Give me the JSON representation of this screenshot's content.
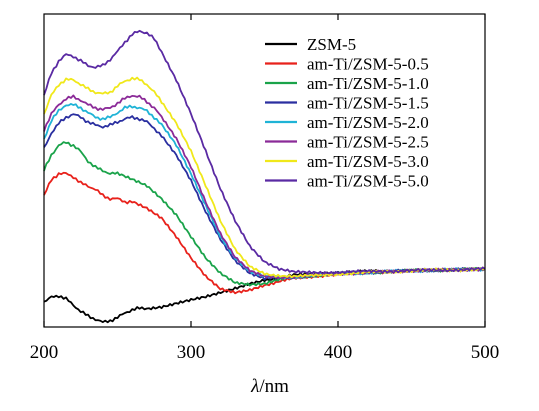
{
  "chart_data": {
    "type": "line",
    "title": "",
    "xlabel_symbol": "λ",
    "xlabel_unit": "/nm",
    "ylabel": "",
    "xlim": [
      200,
      500
    ],
    "ylim": [
      0,
      1
    ],
    "xticks": [
      200,
      300,
      400,
      500
    ],
    "xtick_labels": [
      "200",
      "300",
      "400",
      "500"
    ],
    "yticks_shown": false,
    "grid": false,
    "legend_position": "top-right",
    "series": [
      {
        "name": "ZSM-5",
        "color": "#000000",
        "x": [
          200,
          205,
          210,
          215,
          220,
          225,
          230,
          235,
          240,
          245,
          250,
          255,
          260,
          265,
          270,
          280,
          290,
          300,
          310,
          320,
          330,
          340,
          350,
          370,
          400,
          450,
          500
        ],
        "y": [
          0.08,
          0.095,
          0.1,
          0.09,
          0.07,
          0.05,
          0.035,
          0.025,
          0.015,
          0.02,
          0.03,
          0.045,
          0.055,
          0.06,
          0.06,
          0.065,
          0.075,
          0.085,
          0.095,
          0.11,
          0.125,
          0.14,
          0.15,
          0.165,
          0.175,
          0.18,
          0.185
        ]
      },
      {
        "name": "am-Ti/ZSM-5-0.5",
        "color": "#e8211b",
        "x": [
          200,
          205,
          210,
          215,
          220,
          225,
          230,
          235,
          240,
          245,
          250,
          255,
          260,
          270,
          280,
          290,
          300,
          310,
          320,
          330,
          340,
          350,
          370,
          400,
          450,
          500
        ],
        "y": [
          0.42,
          0.47,
          0.49,
          0.49,
          0.48,
          0.46,
          0.45,
          0.44,
          0.42,
          0.41,
          0.41,
          0.4,
          0.4,
          0.38,
          0.35,
          0.29,
          0.22,
          0.16,
          0.12,
          0.11,
          0.12,
          0.135,
          0.155,
          0.17,
          0.18,
          0.185
        ]
      },
      {
        "name": "am-Ti/ZSM-5-1.0",
        "color": "#1aa34a",
        "x": [
          200,
          205,
          210,
          215,
          220,
          225,
          230,
          235,
          240,
          245,
          250,
          260,
          270,
          280,
          290,
          300,
          310,
          320,
          330,
          340,
          350,
          370,
          400,
          450,
          500
        ],
        "y": [
          0.5,
          0.55,
          0.58,
          0.59,
          0.58,
          0.56,
          0.53,
          0.51,
          0.5,
          0.49,
          0.49,
          0.47,
          0.45,
          0.41,
          0.36,
          0.29,
          0.22,
          0.17,
          0.14,
          0.135,
          0.14,
          0.16,
          0.17,
          0.18,
          0.185
        ]
      },
      {
        "name": "am-Ti/ZSM-5-1.5",
        "color": "#2a2fa0",
        "x": [
          200,
          205,
          210,
          215,
          220,
          225,
          230,
          235,
          240,
          245,
          250,
          255,
          260,
          265,
          270,
          275,
          280,
          290,
          300,
          310,
          320,
          330,
          340,
          350,
          370,
          400,
          450,
          500
        ],
        "y": [
          0.57,
          0.62,
          0.65,
          0.67,
          0.68,
          0.67,
          0.655,
          0.645,
          0.64,
          0.645,
          0.655,
          0.665,
          0.67,
          0.665,
          0.655,
          0.635,
          0.61,
          0.55,
          0.47,
          0.37,
          0.28,
          0.21,
          0.17,
          0.155,
          0.16,
          0.17,
          0.18,
          0.185
        ]
      },
      {
        "name": "am-Ti/ZSM-5-2.0",
        "color": "#1fb3d6",
        "x": [
          200,
          205,
          210,
          215,
          220,
          225,
          230,
          235,
          240,
          245,
          250,
          255,
          260,
          265,
          270,
          275,
          280,
          290,
          300,
          310,
          320,
          330,
          340,
          350,
          370,
          400,
          450,
          500
        ],
        "y": [
          0.6,
          0.66,
          0.69,
          0.71,
          0.71,
          0.7,
          0.685,
          0.67,
          0.665,
          0.67,
          0.685,
          0.7,
          0.705,
          0.7,
          0.69,
          0.67,
          0.645,
          0.58,
          0.49,
          0.39,
          0.29,
          0.22,
          0.175,
          0.16,
          0.16,
          0.17,
          0.18,
          0.185
        ]
      },
      {
        "name": "am-Ti/ZSM-5-2.5",
        "color": "#8b2a98",
        "x": [
          200,
          205,
          210,
          215,
          220,
          225,
          230,
          235,
          240,
          245,
          250,
          255,
          260,
          265,
          270,
          275,
          280,
          290,
          300,
          310,
          320,
          330,
          340,
          350,
          370,
          400,
          450,
          500
        ],
        "y": [
          0.63,
          0.68,
          0.71,
          0.73,
          0.735,
          0.725,
          0.71,
          0.7,
          0.695,
          0.7,
          0.715,
          0.73,
          0.74,
          0.735,
          0.72,
          0.7,
          0.67,
          0.6,
          0.51,
          0.4,
          0.3,
          0.225,
          0.18,
          0.16,
          0.16,
          0.17,
          0.18,
          0.185
        ]
      },
      {
        "name": "am-Ti/ZSM-5-3.0",
        "color": "#f0e81a",
        "x": [
          200,
          205,
          210,
          215,
          220,
          225,
          230,
          235,
          240,
          245,
          250,
          255,
          260,
          265,
          270,
          275,
          280,
          290,
          300,
          310,
          320,
          330,
          340,
          350,
          370,
          400,
          450,
          500
        ],
        "y": [
          0.68,
          0.74,
          0.775,
          0.79,
          0.79,
          0.775,
          0.76,
          0.75,
          0.745,
          0.75,
          0.77,
          0.785,
          0.795,
          0.79,
          0.775,
          0.75,
          0.72,
          0.65,
          0.56,
          0.45,
          0.34,
          0.25,
          0.195,
          0.17,
          0.16,
          0.17,
          0.18,
          0.185
        ]
      },
      {
        "name": "am-Ti/ZSM-5-5.0",
        "color": "#5a2aa3",
        "x": [
          200,
          205,
          210,
          215,
          220,
          225,
          230,
          235,
          240,
          245,
          250,
          255,
          260,
          265,
          270,
          275,
          280,
          290,
          300,
          310,
          320,
          330,
          340,
          350,
          360,
          370,
          400,
          450,
          500
        ],
        "y": [
          0.74,
          0.81,
          0.85,
          0.87,
          0.865,
          0.85,
          0.835,
          0.83,
          0.835,
          0.855,
          0.88,
          0.91,
          0.935,
          0.945,
          0.94,
          0.92,
          0.88,
          0.79,
          0.68,
          0.56,
          0.44,
          0.34,
          0.26,
          0.21,
          0.185,
          0.175,
          0.175,
          0.18,
          0.185
        ]
      }
    ]
  }
}
